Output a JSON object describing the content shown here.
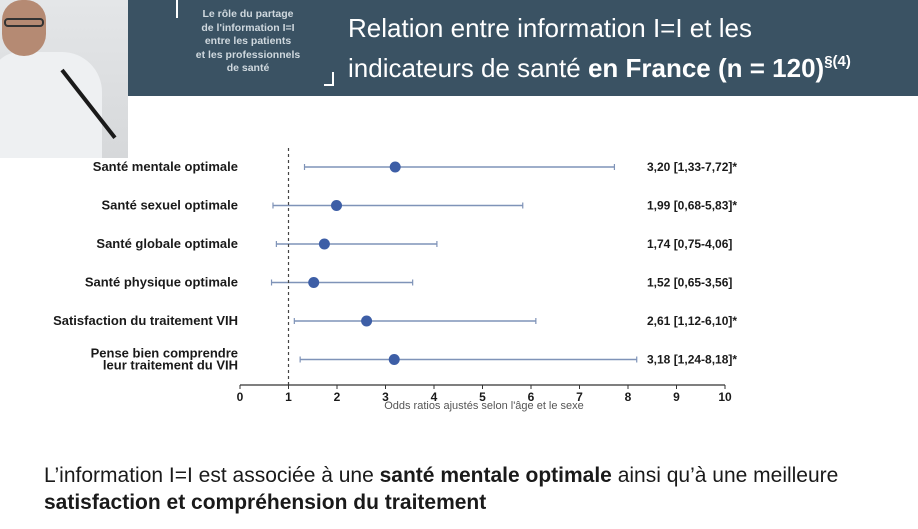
{
  "header": {
    "topic_lines": [
      "Le rôle du partage",
      "de l'information I=I",
      "entre les patients",
      "et les professionnels",
      "de santé"
    ],
    "title_line1": "Relation entre information I=I et les",
    "title_line2_plain": "indicateurs de santé ",
    "title_line2_bold": "en France (n = 120)",
    "title_superscript": "§(4)"
  },
  "chart_data": {
    "type": "forest",
    "xlabel": "Odds ratios ajustés selon l'âge et le sexe",
    "xlim": [
      0,
      10
    ],
    "xticks": [
      0,
      1,
      2,
      3,
      4,
      5,
      6,
      7,
      8,
      9,
      10
    ],
    "reference_line": 1,
    "rows": [
      {
        "label": [
          "Santé mentale optimale"
        ],
        "or": 3.2,
        "ci_low": 1.33,
        "ci_high": 7.72,
        "text": "3,20 [1,33-7,72]*"
      },
      {
        "label": [
          "Santé sexuel optimale"
        ],
        "or": 1.99,
        "ci_low": 0.68,
        "ci_high": 5.83,
        "text": "1,99 [0,68-5,83]*"
      },
      {
        "label": [
          "Santé globale optimale"
        ],
        "or": 1.74,
        "ci_low": 0.75,
        "ci_high": 4.06,
        "text": "1,74 [0,75-4,06]"
      },
      {
        "label": [
          "Santé physique optimale"
        ],
        "or": 1.52,
        "ci_low": 0.65,
        "ci_high": 3.56,
        "text": "1,52 [0,65-3,56]"
      },
      {
        "label": [
          "Satisfaction du traitement VIH"
        ],
        "or": 2.61,
        "ci_low": 1.12,
        "ci_high": 6.1,
        "text": "2,61 [1,12-6,10]*"
      },
      {
        "label": [
          "Pense bien comprendre",
          "leur traitement du VIH"
        ],
        "or": 3.18,
        "ci_low": 1.24,
        "ci_high": 8.18,
        "text": "3,18 [1,24-8,18]*"
      }
    ],
    "marker_color": "#3d5ea6",
    "line_color": "#7f93b8"
  },
  "conclusion": {
    "part1": "L’information I=I est associée à une ",
    "bold1": "santé mentale optimale",
    "part2": " ainsi qu’à une meilleure ",
    "bold2": "satisfaction et compréhension du traitement"
  }
}
